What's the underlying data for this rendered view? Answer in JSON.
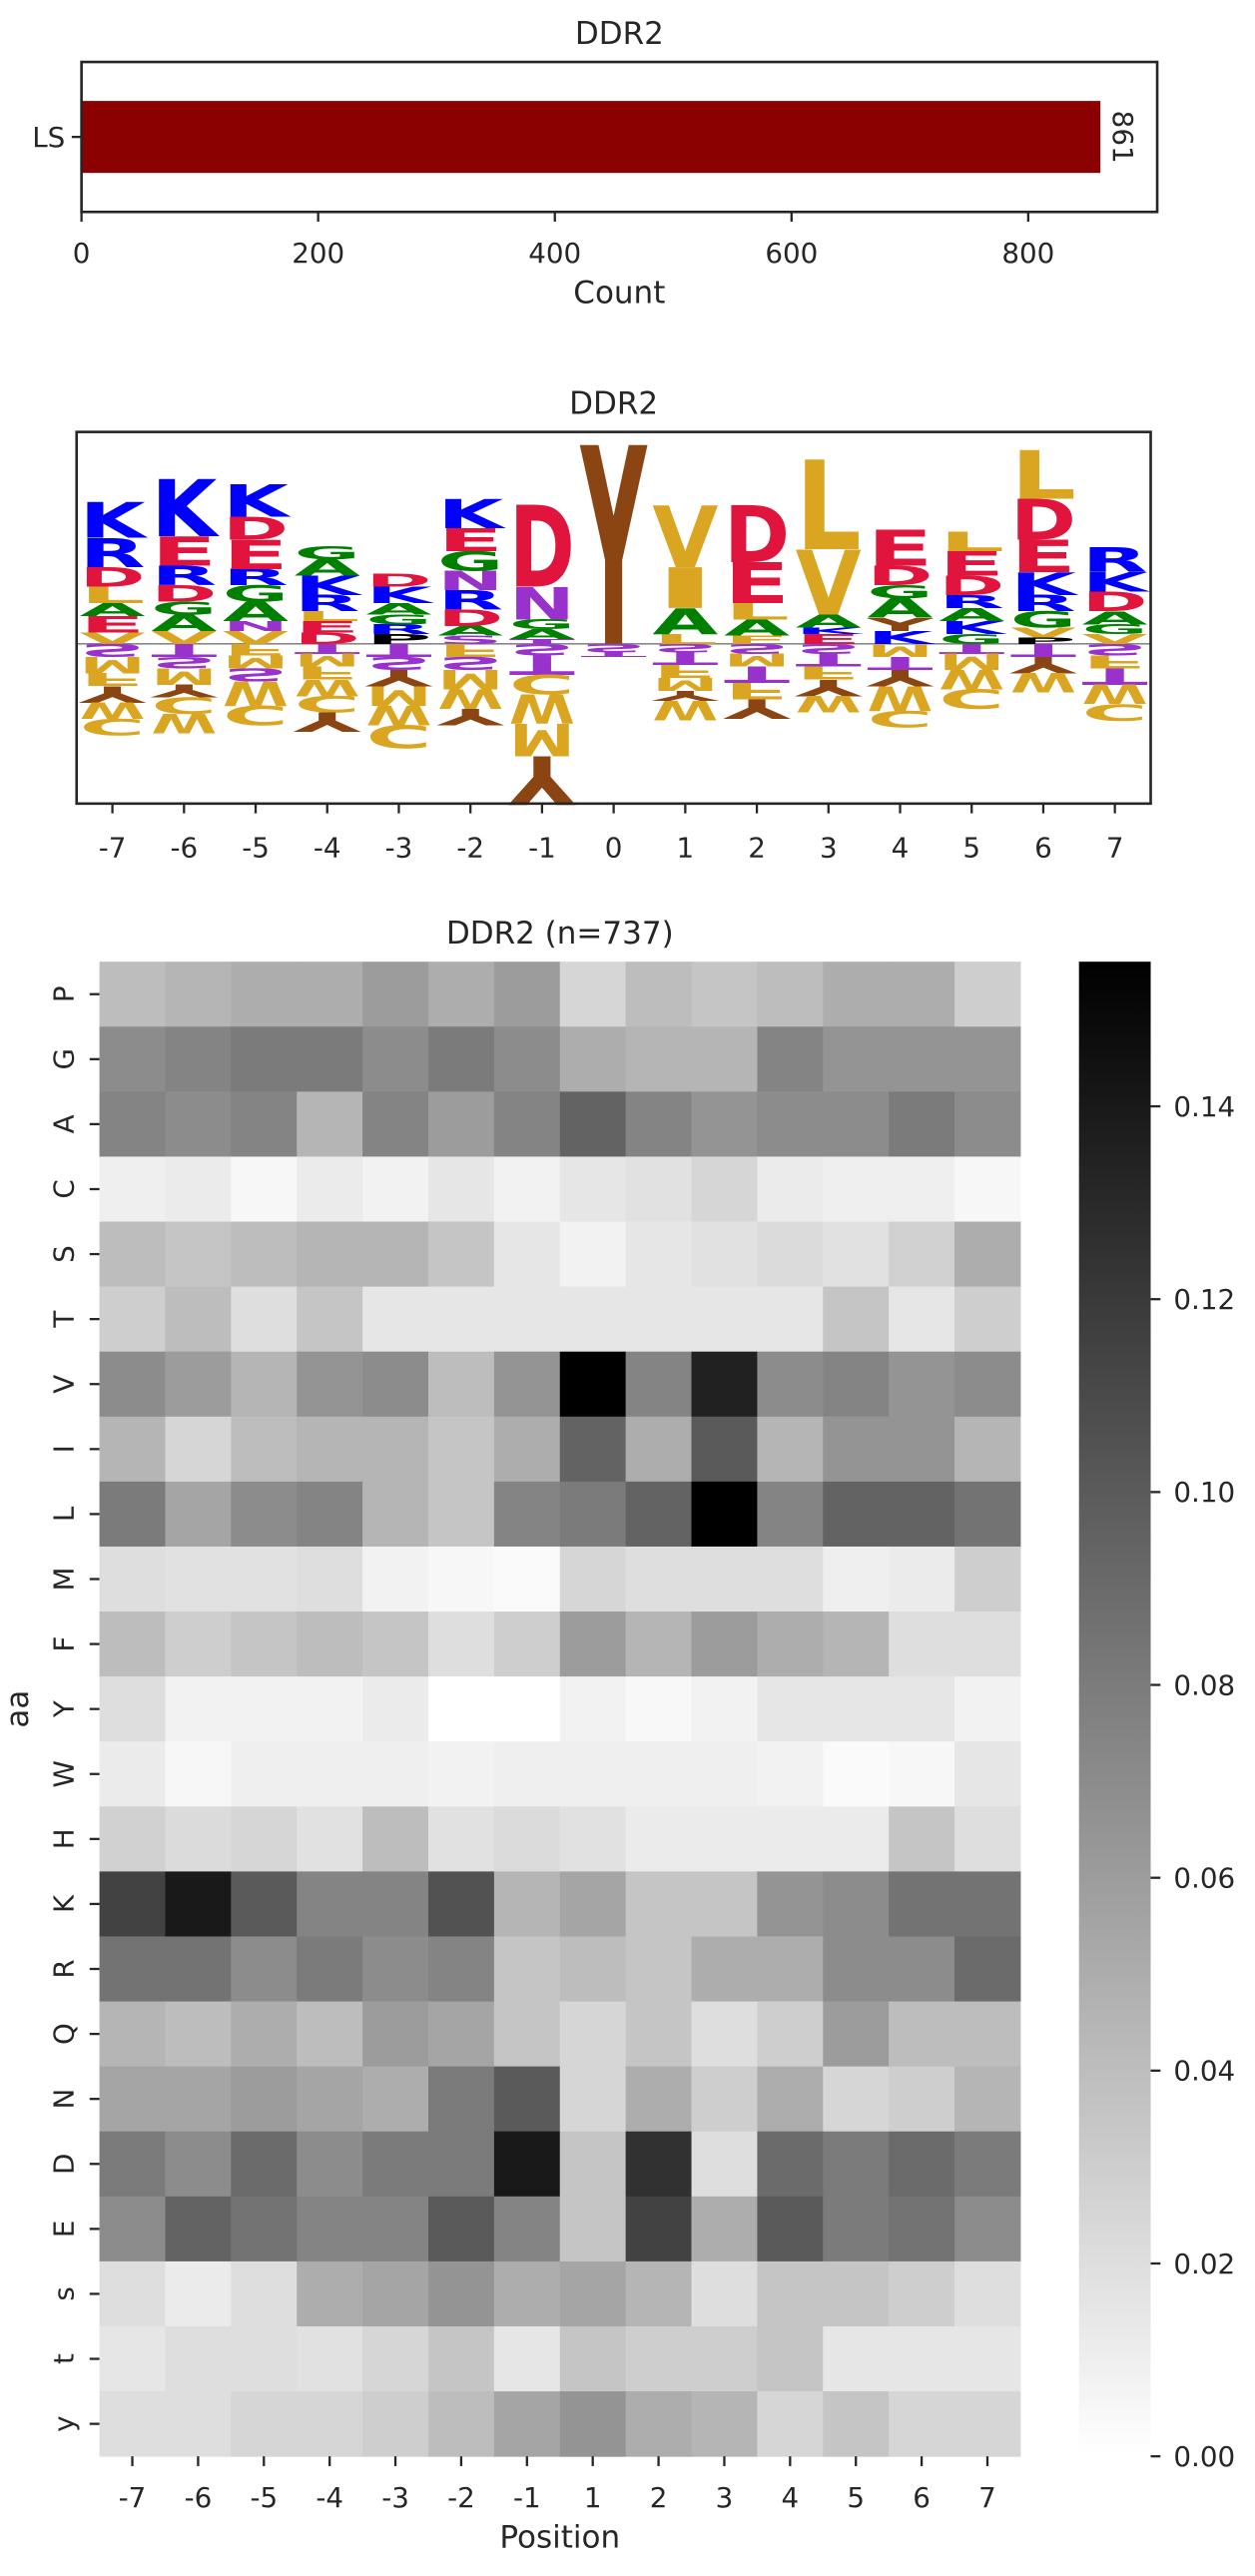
{
  "chart_data": [
    {
      "type": "bar",
      "orientation": "horizontal",
      "title": "DDR2",
      "categories": [
        "LS"
      ],
      "values": [
        861
      ],
      "color": "#8b0000",
      "xlim": [
        0,
        909
      ],
      "xticks": [
        0,
        200,
        400,
        600,
        800
      ],
      "xlabel": "Count",
      "show_values": true
    },
    {
      "type": "logo",
      "title": "DDR2",
      "positions": [
        -7,
        -6,
        -5,
        -4,
        -3,
        -2,
        -1,
        0,
        1,
        2,
        3,
        4,
        5,
        6,
        7
      ],
      "ylim": [
        -0.98,
        1.3
      ],
      "colors": {
        "K": "#0000ff",
        "R": "#0000ff",
        "H": "#0000ff",
        "D": "#e0143c",
        "E": "#e0143c",
        "A": "#008000",
        "G": "#008000",
        "S": "#9932cc",
        "T": "#9932cc",
        "N": "#9932cc",
        "Q": "#9932cc",
        "L": "#daa520",
        "V": "#daa520",
        "I": "#daa520",
        "M": "#daa520",
        "W": "#daa520",
        "C": "#daa520",
        "F": "#daa520",
        "Y": "#8b4513",
        "P": "#000000"
      },
      "stacks": [
        {
          "letters": [
            "V",
            "E",
            "A",
            "L",
            "D",
            "R",
            "K",
            "S",
            "M",
            "F",
            "Y",
            "W",
            "C"
          ],
          "heights": [
            0.07,
            0.1,
            0.08,
            0.1,
            0.12,
            0.18,
            0.22,
            -0.08,
            -0.1,
            -0.08,
            -0.1,
            -0.1,
            -0.1
          ]
        },
        {
          "letters": [
            "V",
            "A",
            "G",
            "D",
            "R",
            "E",
            "K",
            "T",
            "S",
            "M",
            "Y",
            "C",
            "W"
          ],
          "heights": [
            0.08,
            0.1,
            0.08,
            0.1,
            0.12,
            0.18,
            0.35,
            -0.08,
            -0.07,
            -0.1,
            -0.08,
            -0.1,
            -0.12
          ]
        },
        {
          "letters": [
            "V",
            "N",
            "A",
            "G",
            "R",
            "E",
            "D",
            "K",
            "F",
            "M",
            "S",
            "W",
            "C"
          ],
          "heights": [
            0.08,
            0.06,
            0.12,
            0.1,
            0.1,
            0.18,
            0.14,
            0.2,
            -0.07,
            -0.08,
            -0.08,
            -0.15,
            -0.12
          ]
        },
        {
          "letters": [
            "D",
            "E",
            "L",
            "R",
            "K",
            "A",
            "G",
            "T",
            "M",
            "F",
            "W",
            "C",
            "Y"
          ],
          "heights": [
            0.07,
            0.07,
            0.06,
            0.1,
            0.12,
            0.1,
            0.08,
            -0.06,
            -0.08,
            -0.08,
            -0.1,
            -0.1,
            -0.12
          ]
        },
        {
          "letters": [
            "P",
            "R",
            "G",
            "A",
            "K",
            "D",
            "T",
            "S",
            "Y",
            "M",
            "W",
            "C"
          ],
          "heights": [
            0.06,
            0.06,
            0.06,
            0.07,
            0.1,
            0.08,
            -0.08,
            -0.08,
            -0.1,
            -0.12,
            -0.12,
            -0.14
          ]
        },
        {
          "letters": [
            "S",
            "A",
            "D",
            "R",
            "N",
            "G",
            "E",
            "K",
            "F",
            "S",
            "M",
            "W",
            "Y"
          ],
          "heights": [
            0.05,
            0.06,
            0.1,
            0.12,
            0.12,
            0.12,
            0.14,
            0.18,
            -0.08,
            -0.08,
            -0.12,
            -0.12,
            -0.1
          ]
        },
        {
          "letters": [
            "T",
            "A",
            "G",
            "N",
            "D",
            "S",
            "T",
            "C",
            "W",
            "M",
            "Y"
          ],
          "heights": [
            0.03,
            0.06,
            0.06,
            0.2,
            0.5,
            -0.07,
            -0.12,
            -0.12,
            -0.18,
            -0.2,
            -0.3
          ]
        },
        {
          "letters": [
            "Y",
            "S",
            "T"
          ],
          "heights": [
            1.22,
            -0.05,
            -0.03
          ]
        },
        {
          "letters": [
            "L",
            "A",
            "I",
            "V",
            "S",
            "T",
            "F",
            "M",
            "Y",
            "W"
          ],
          "heights": [
            0.06,
            0.16,
            0.25,
            0.38,
            -0.05,
            -0.08,
            -0.08,
            -0.08,
            -0.06,
            -0.12
          ]
        },
        {
          "letters": [
            "F",
            "A",
            "L",
            "E",
            "D",
            "S",
            "M",
            "T",
            "F",
            "Y"
          ],
          "heights": [
            0.05,
            0.1,
            0.1,
            0.25,
            0.35,
            -0.06,
            -0.08,
            -0.1,
            -0.1,
            -0.12
          ]
        },
        {
          "letters": [
            "E",
            "K",
            "A",
            "V",
            "L",
            "S",
            "T",
            "F",
            "Y",
            "W"
          ],
          "heights": [
            0.06,
            0.04,
            0.08,
            0.4,
            0.55,
            -0.06,
            -0.08,
            -0.08,
            -0.1,
            -0.1
          ]
        },
        {
          "letters": [
            "K",
            "Y",
            "A",
            "G",
            "D",
            "E",
            "M",
            "T",
            "Y",
            "W",
            "C"
          ],
          "heights": [
            0.08,
            0.08,
            0.12,
            0.08,
            0.12,
            0.22,
            -0.08,
            -0.08,
            -0.1,
            -0.15,
            -0.1
          ]
        },
        {
          "letters": [
            "G",
            "K",
            "A",
            "R",
            "D",
            "E",
            "L",
            "T",
            "M",
            "W",
            "C"
          ],
          "heights": [
            0.06,
            0.08,
            0.08,
            0.08,
            0.12,
            0.15,
            0.12,
            -0.06,
            -0.1,
            -0.12,
            -0.12
          ]
        },
        {
          "letters": [
            "P",
            "V",
            "G",
            "R",
            "K",
            "E",
            "D",
            "L",
            "T",
            "Y",
            "W"
          ],
          "heights": [
            0.04,
            0.06,
            0.1,
            0.1,
            0.14,
            0.2,
            0.25,
            0.3,
            -0.08,
            -0.1,
            -0.12
          ]
        },
        {
          "letters": [
            "V",
            "G",
            "A",
            "D",
            "K",
            "R",
            "S",
            "F",
            "T",
            "W",
            "C"
          ],
          "heights": [
            0.06,
            0.06,
            0.08,
            0.12,
            0.12,
            0.15,
            -0.07,
            -0.08,
            -0.1,
            -0.12,
            -0.1
          ]
        }
      ]
    },
    {
      "type": "heatmap",
      "title": "DDR2 (n=737)",
      "xlabel": "Position",
      "ylabel": "aa",
      "colormap": "Greys",
      "x": [
        -7,
        -6,
        -5,
        -4,
        -3,
        -2,
        -1,
        1,
        2,
        3,
        4,
        5,
        6,
        7
      ],
      "y": [
        "P",
        "G",
        "A",
        "C",
        "S",
        "T",
        "V",
        "I",
        "L",
        "M",
        "F",
        "Y",
        "W",
        "H",
        "K",
        "R",
        "Q",
        "N",
        "D",
        "E",
        "s",
        "t",
        "y"
      ],
      "values": [
        [
          0.04,
          0.045,
          0.05,
          0.05,
          0.06,
          0.05,
          0.06,
          0.025,
          0.04,
          0.035,
          0.04,
          0.05,
          0.05,
          0.03
        ],
        [
          0.07,
          0.075,
          0.08,
          0.08,
          0.07,
          0.08,
          0.07,
          0.05,
          0.045,
          0.045,
          0.075,
          0.065,
          0.065,
          0.065
        ],
        [
          0.075,
          0.07,
          0.075,
          0.045,
          0.075,
          0.06,
          0.075,
          0.095,
          0.075,
          0.065,
          0.07,
          0.07,
          0.08,
          0.07
        ],
        [
          0.01,
          0.012,
          0.005,
          0.012,
          0.008,
          0.015,
          0.008,
          0.015,
          0.018,
          0.025,
          0.012,
          0.01,
          0.01,
          0.005
        ],
        [
          0.04,
          0.035,
          0.04,
          0.045,
          0.045,
          0.035,
          0.015,
          0.008,
          0.015,
          0.018,
          0.022,
          0.018,
          0.028,
          0.05
        ],
        [
          0.03,
          0.04,
          0.02,
          0.035,
          0.015,
          0.015,
          0.015,
          0.015,
          0.015,
          0.015,
          0.015,
          0.035,
          0.015,
          0.03
        ],
        [
          0.07,
          0.06,
          0.045,
          0.065,
          0.07,
          0.04,
          0.065,
          0.155,
          0.075,
          0.135,
          0.07,
          0.075,
          0.065,
          0.07
        ],
        [
          0.045,
          0.025,
          0.04,
          0.045,
          0.045,
          0.035,
          0.05,
          0.095,
          0.05,
          0.1,
          0.045,
          0.065,
          0.065,
          0.045
        ],
        [
          0.08,
          0.055,
          0.07,
          0.075,
          0.045,
          0.035,
          0.075,
          0.08,
          0.095,
          0.155,
          0.075,
          0.095,
          0.095,
          0.085
        ],
        [
          0.02,
          0.018,
          0.018,
          0.02,
          0.008,
          0.005,
          0.003,
          0.025,
          0.02,
          0.02,
          0.02,
          0.01,
          0.012,
          0.03
        ],
        [
          0.04,
          0.03,
          0.035,
          0.04,
          0.035,
          0.02,
          0.03,
          0.06,
          0.045,
          0.06,
          0.05,
          0.045,
          0.02,
          0.02
        ],
        [
          0.02,
          0.008,
          0.008,
          0.008,
          0.012,
          0.0,
          0.0,
          0.008,
          0.004,
          0.008,
          0.015,
          0.015,
          0.015,
          0.008
        ],
        [
          0.012,
          0.005,
          0.01,
          0.01,
          0.01,
          0.008,
          0.01,
          0.01,
          0.01,
          0.01,
          0.008,
          0.003,
          0.005,
          0.015
        ],
        [
          0.028,
          0.022,
          0.025,
          0.018,
          0.04,
          0.018,
          0.022,
          0.018,
          0.012,
          0.012,
          0.012,
          0.012,
          0.035,
          0.02
        ],
        [
          0.115,
          0.14,
          0.1,
          0.075,
          0.075,
          0.105,
          0.045,
          0.055,
          0.035,
          0.035,
          0.065,
          0.07,
          0.085,
          0.085
        ],
        [
          0.085,
          0.085,
          0.07,
          0.08,
          0.07,
          0.075,
          0.035,
          0.04,
          0.035,
          0.05,
          0.05,
          0.07,
          0.07,
          0.09
        ],
        [
          0.045,
          0.04,
          0.05,
          0.04,
          0.06,
          0.055,
          0.035,
          0.025,
          0.035,
          0.02,
          0.03,
          0.06,
          0.04,
          0.04
        ],
        [
          0.055,
          0.055,
          0.06,
          0.055,
          0.05,
          0.08,
          0.1,
          0.025,
          0.05,
          0.03,
          0.05,
          0.025,
          0.03,
          0.045
        ],
        [
          0.08,
          0.07,
          0.09,
          0.07,
          0.08,
          0.08,
          0.14,
          0.035,
          0.125,
          0.02,
          0.09,
          0.08,
          0.09,
          0.08
        ],
        [
          0.07,
          0.095,
          0.085,
          0.075,
          0.075,
          0.1,
          0.075,
          0.035,
          0.115,
          0.05,
          0.1,
          0.08,
          0.085,
          0.07
        ],
        [
          0.02,
          0.012,
          0.02,
          0.05,
          0.055,
          0.065,
          0.05,
          0.055,
          0.045,
          0.02,
          0.035,
          0.035,
          0.03,
          0.02
        ],
        [
          0.015,
          0.02,
          0.02,
          0.018,
          0.025,
          0.035,
          0.015,
          0.035,
          0.03,
          0.03,
          0.035,
          0.015,
          0.015,
          0.015
        ],
        [
          0.02,
          0.02,
          0.025,
          0.025,
          0.03,
          0.04,
          0.055,
          0.065,
          0.05,
          0.045,
          0.025,
          0.035,
          0.025,
          0.025
        ]
      ],
      "vlim": [
        0,
        0.155
      ],
      "colorbar_ticks": [
        {
          "value": 0,
          "label": "0.00"
        },
        {
          "value": 0.02,
          "label": "0.02"
        },
        {
          "value": 0.04,
          "label": "0.04"
        },
        {
          "value": 0.06,
          "label": "0.06"
        },
        {
          "value": 0.08,
          "label": "0.08"
        },
        {
          "value": 0.1,
          "label": "0.10"
        },
        {
          "value": 0.12,
          "label": "0.12"
        },
        {
          "value": 0.14,
          "label": "0.14"
        }
      ]
    }
  ]
}
